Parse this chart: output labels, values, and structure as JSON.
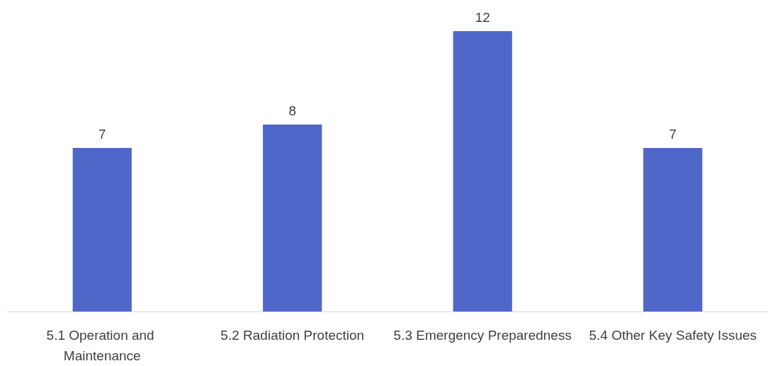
{
  "chart_data": {
    "type": "bar",
    "categories": [
      "5.1 Operation and Maintenance",
      "5.2 Radiation Protection",
      "5.3 Emergency Preparedness",
      "5.4 Other Key Safety Issues"
    ],
    "values": [
      7,
      8,
      12,
      7
    ],
    "color": "#4e67c8",
    "data_labels": true
  }
}
